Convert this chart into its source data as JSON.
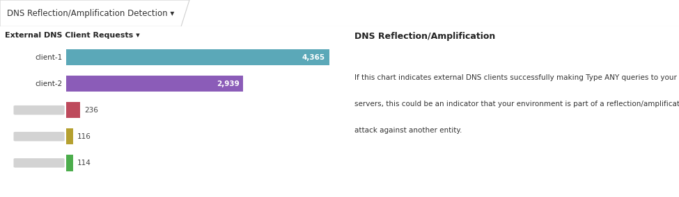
{
  "tab_title": "DNS Reflection/Amplification Detection ▾",
  "section_title": "External DNS Client Requests ▾",
  "right_title": "DNS Reflection/Amplification",
  "right_text_lines": [
    "If this chart indicates external DNS clients successfully making Type ANY queries to your DNS",
    "servers, this could be an indicator that your environment is part of a reflection/amplification",
    "attack against another entity."
  ],
  "categories": [
    "client-1",
    "client-2",
    "",
    "",
    ""
  ],
  "values": [
    4365,
    2939,
    236,
    116,
    114
  ],
  "bar_colors": [
    "#5ba8b8",
    "#8b5cb8",
    "#be4a5c",
    "#b5a030",
    "#4cad4c"
  ],
  "value_labels": [
    "4,365",
    "2,939",
    "236",
    "116",
    "114"
  ],
  "blurred": [
    false,
    false,
    true,
    true,
    true
  ],
  "max_value": 4365,
  "background_color": "#ffffff",
  "tab_bg": "#ebebeb",
  "tab_text_color": "#333333",
  "section_title_color": "#222222",
  "border_color": "#d0d0d0",
  "label_color_normal": "#333333",
  "right_title_color": "#222222",
  "right_text_color": "#333333"
}
